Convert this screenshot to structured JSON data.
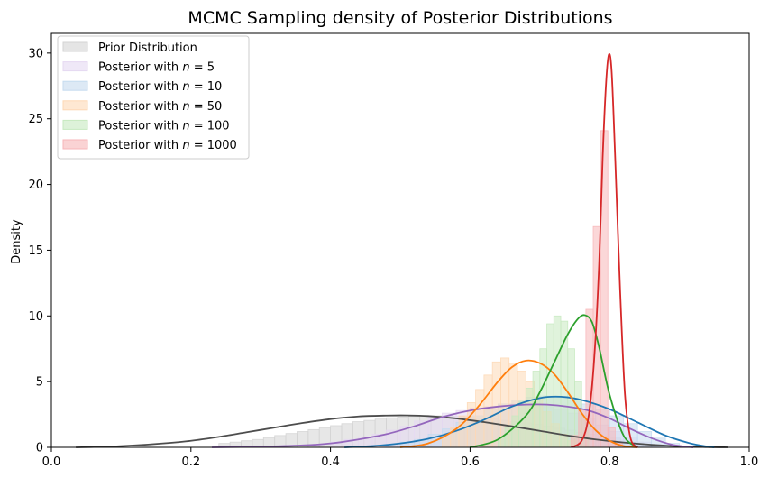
{
  "chart_data": {
    "type": "area",
    "title": "MCMC Sampling density of Posterior Distributions",
    "xlabel": "",
    "ylabel": "Density",
    "xlim": [
      0.0,
      1.0
    ],
    "ylim": [
      0,
      31.5
    ],
    "x_ticks": [
      "0.0",
      "0.2",
      "0.4",
      "0.6",
      "0.8",
      "1.0"
    ],
    "y_ticks": [
      "0",
      "5",
      "10",
      "15",
      "20",
      "25",
      "30"
    ],
    "x_tick_values": [
      0.0,
      0.2,
      0.4,
      0.6,
      0.8,
      1.0
    ],
    "y_tick_values": [
      0,
      5,
      10,
      15,
      20,
      25,
      30
    ],
    "grid": false,
    "legend_position": "top-left",
    "series": [
      {
        "name": "Prior Distribution",
        "fill": "#d3d3d3",
        "line": "#4d4d4d",
        "kde": {
          "x": [
            0.035,
            0.08,
            0.12,
            0.16,
            0.2,
            0.24,
            0.28,
            0.32,
            0.36,
            0.4,
            0.44,
            0.48,
            0.51,
            0.54,
            0.58,
            0.62,
            0.66,
            0.7,
            0.74,
            0.78,
            0.82,
            0.86,
            0.9,
            0.94,
            0.97
          ],
          "y": [
            0.0,
            0.05,
            0.15,
            0.3,
            0.5,
            0.8,
            1.15,
            1.5,
            1.85,
            2.15,
            2.35,
            2.42,
            2.43,
            2.38,
            2.2,
            1.92,
            1.6,
            1.25,
            0.9,
            0.6,
            0.37,
            0.2,
            0.08,
            0.02,
            0.0
          ]
        },
        "hist": {
          "bin_start": 0.24,
          "bin_width": 0.016,
          "values": [
            0.3,
            0.4,
            0.5,
            0.6,
            0.75,
            0.9,
            1.05,
            1.2,
            1.35,
            1.5,
            1.65,
            1.8,
            1.95,
            2.05,
            2.15,
            2.25,
            2.3,
            2.35,
            2.4,
            2.4,
            2.4,
            2.35,
            2.3,
            2.25,
            2.15,
            2.05,
            1.95,
            1.85,
            1.75,
            1.6,
            1.45,
            1.3,
            1.15,
            1.0,
            0.85,
            0.7,
            0.55,
            0.4
          ]
        }
      },
      {
        "name": "Posterior with n = 5",
        "label_prefix": "Posterior with ",
        "label_var": "n",
        "label_suffix": " = 5",
        "fill": "#e5d9f2",
        "line": "#9467bd",
        "kde": {
          "x": [
            0.23,
            0.3,
            0.36,
            0.4,
            0.44,
            0.48,
            0.52,
            0.56,
            0.6,
            0.64,
            0.68,
            0.71,
            0.74,
            0.77,
            0.8,
            0.83,
            0.86,
            0.89,
            0.92
          ],
          "y": [
            0.0,
            0.05,
            0.15,
            0.3,
            0.6,
            1.0,
            1.6,
            2.3,
            2.8,
            3.1,
            3.25,
            3.25,
            3.1,
            2.8,
            2.2,
            1.4,
            0.7,
            0.2,
            0.0
          ]
        },
        "hist": {
          "bin_start": 0.4,
          "bin_width": 0.02,
          "values": [
            0.4,
            0.6,
            0.8,
            1.0,
            1.3,
            1.6,
            2.0,
            2.3,
            2.6,
            2.8,
            3.0,
            3.1,
            3.2,
            3.3,
            3.2,
            3.1,
            2.9,
            2.6,
            2.2,
            1.7,
            1.2,
            0.8,
            0.4,
            0.2
          ]
        }
      },
      {
        "name": "Posterior with n = 10",
        "label_prefix": "Posterior with ",
        "label_var": "n",
        "label_suffix": " = 10",
        "fill": "#c6dbef",
        "line": "#1f77b4",
        "kde": {
          "x": [
            0.42,
            0.46,
            0.5,
            0.54,
            0.58,
            0.62,
            0.66,
            0.7,
            0.73,
            0.76,
            0.8,
            0.84,
            0.88,
            0.92,
            0.95
          ],
          "y": [
            0.0,
            0.1,
            0.3,
            0.65,
            1.25,
            2.1,
            3.1,
            3.75,
            3.85,
            3.6,
            2.9,
            1.9,
            0.9,
            0.25,
            0.0
          ]
        },
        "hist": {
          "bin_start": 0.5,
          "bin_width": 0.02,
          "values": [
            0.4,
            0.6,
            1.0,
            1.4,
            1.9,
            2.4,
            2.9,
            3.3,
            3.6,
            3.8,
            3.9,
            3.8,
            3.6,
            3.3,
            2.9,
            2.4,
            1.8,
            1.2,
            0.7,
            0.3
          ]
        }
      },
      {
        "name": "Posterior with n = 50",
        "label_prefix": "Posterior with ",
        "label_var": "n",
        "label_suffix": " = 50",
        "fill": "#fdd8b5",
        "line": "#ff7f0e",
        "kde": {
          "x": [
            0.5,
            0.54,
            0.58,
            0.61,
            0.64,
            0.66,
            0.68,
            0.7,
            0.72,
            0.74,
            0.76,
            0.78,
            0.8,
            0.82,
            0.84
          ],
          "y": [
            0.0,
            0.3,
            1.4,
            3.0,
            5.0,
            6.1,
            6.6,
            6.4,
            5.6,
            4.2,
            2.6,
            1.3,
            0.5,
            0.1,
            0.0
          ]
        },
        "hist": {
          "bin_start": 0.56,
          "bin_width": 0.012,
          "values": [
            0.8,
            1.5,
            2.4,
            3.4,
            4.4,
            5.5,
            6.5,
            6.8,
            6.4,
            5.8,
            5.0,
            3.8,
            2.7,
            1.8,
            1.0,
            0.5
          ]
        }
      },
      {
        "name": "Posterior with n = 100",
        "label_prefix": "Posterior with ",
        "label_var": "n",
        "label_suffix": " = 100",
        "fill": "#c7e9c0",
        "line": "#2ca02c",
        "kde": {
          "x": [
            0.6,
            0.64,
            0.68,
            0.7,
            0.72,
            0.74,
            0.755,
            0.765,
            0.775,
            0.785,
            0.8,
            0.82,
            0.84
          ],
          "y": [
            0.0,
            0.6,
            2.4,
            4.2,
            6.4,
            8.6,
            9.8,
            10.05,
            9.5,
            7.6,
            4.0,
            0.9,
            0.0
          ]
        },
        "hist": {
          "bin_start": 0.64,
          "bin_width": 0.01,
          "values": [
            0.8,
            1.5,
            2.4,
            3.5,
            4.5,
            5.8,
            7.5,
            9.4,
            10.0,
            9.6,
            7.5,
            5.0,
            2.4
          ]
        }
      },
      {
        "name": "Posterior with n = 1000",
        "label_prefix": "Posterior with ",
        "label_var": "n",
        "label_suffix": " = 1000",
        "fill": "#f7b6b8",
        "line": "#d62728",
        "kde": {
          "x": [
            0.745,
            0.76,
            0.77,
            0.778,
            0.785,
            0.79,
            0.795,
            0.799,
            0.803,
            0.808,
            0.815,
            0.822,
            0.83,
            0.84
          ],
          "y": [
            0.0,
            0.5,
            2.4,
            6.8,
            14.0,
            22.0,
            27.8,
            29.9,
            28.5,
            22.0,
            12.0,
            4.0,
            0.7,
            0.0
          ]
        },
        "hist": {
          "bin_start": 0.745,
          "bin_width": 0.0105,
          "values": [
            0.9,
            2.9,
            10.5,
            16.8,
            24.1,
            1.5,
            0.3
          ]
        }
      }
    ]
  }
}
